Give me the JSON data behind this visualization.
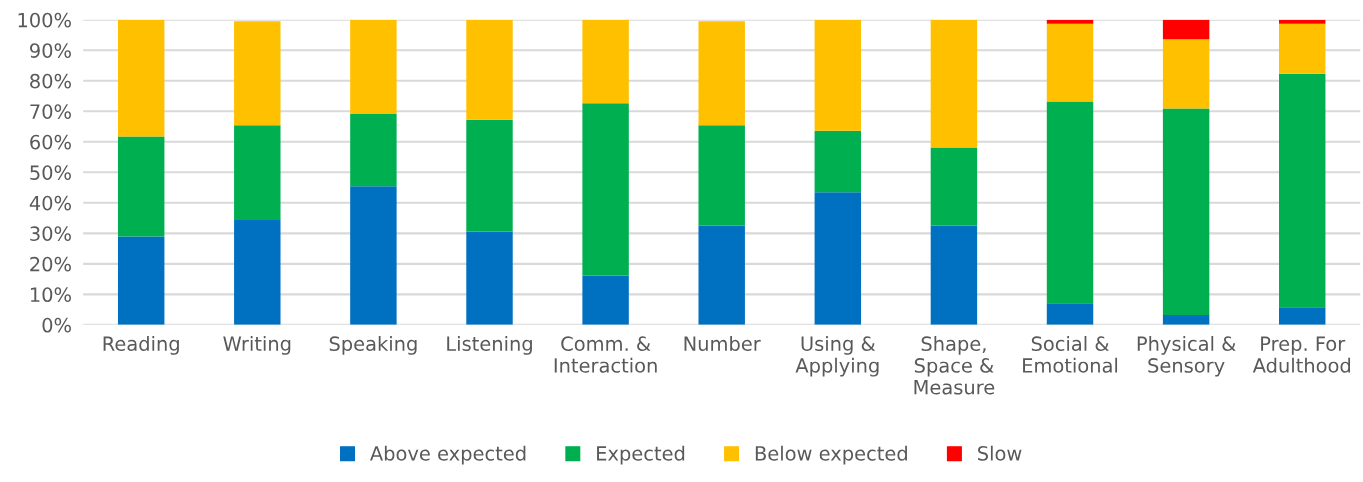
{
  "chart_data": {
    "type": "bar",
    "stacked": true,
    "categories": [
      "Reading",
      "Writing",
      "Speaking",
      "Listening",
      "Comm. &\nInteraction",
      "Number",
      "Using &\nApplying",
      "Shape,\nSpace &\nMeasure",
      "Social &\nEmotional",
      "Physical &\nSensory",
      "Prep. For\nAdulthood"
    ],
    "series": [
      {
        "name": "Above expected",
        "color": "#0070c0",
        "values": [
          29.0,
          34.4,
          45.4,
          30.6,
          16.2,
          32.6,
          43.5,
          32.6,
          7.1,
          3.2,
          5.8
        ]
      },
      {
        "name": "Expected",
        "color": "#00b050",
        "values": [
          32.7,
          31.0,
          23.7,
          36.6,
          56.4,
          32.8,
          20.1,
          25.5,
          66.1,
          67.7,
          76.5
        ]
      },
      {
        "name": "Below expected",
        "color": "#ffc000",
        "values": [
          38.3,
          34.1,
          30.9,
          32.8,
          27.4,
          34.1,
          36.4,
          41.9,
          25.5,
          22.7,
          16.4
        ]
      },
      {
        "name": "Slow",
        "color": "#ff0000",
        "values": [
          0,
          0,
          0,
          0,
          0,
          0,
          0,
          0,
          1.3,
          6.4,
          1.3
        ]
      }
    ],
    "ylim": [
      0,
      100
    ],
    "yticks": [
      {
        "value": 0,
        "label": "0%"
      },
      {
        "value": 10,
        "label": "10%"
      },
      {
        "value": 20,
        "label": "20%"
      },
      {
        "value": 30,
        "label": "30%"
      },
      {
        "value": 40,
        "label": "40%"
      },
      {
        "value": 50,
        "label": "50%"
      },
      {
        "value": 60,
        "label": "60%"
      },
      {
        "value": 70,
        "label": "70%"
      },
      {
        "value": 80,
        "label": "80%"
      },
      {
        "value": 90,
        "label": "90%"
      },
      {
        "value": 100,
        "label": "100%"
      }
    ],
    "grid": "y",
    "legend": "bottom"
  }
}
